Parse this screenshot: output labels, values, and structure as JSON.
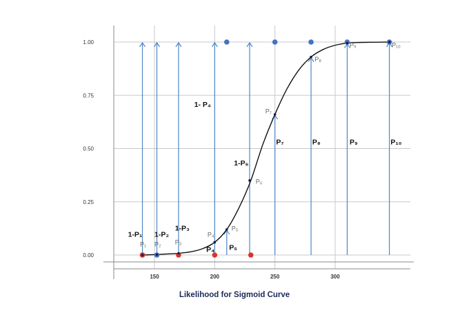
{
  "chart_data": {
    "type": "scatter",
    "xlabel": "Likelihood for Sigmoid Curve",
    "ylabel": "",
    "xlim": [
      120,
      355
    ],
    "ylim": [
      0,
      1
    ],
    "x_ticks": [
      "150",
      "200",
      "250",
      "300"
    ],
    "x_tick_values": [
      150,
      200,
      250,
      300
    ],
    "y_ticks": [
      "0.00",
      "0.25",
      "0.50",
      "0.75",
      "1.00"
    ],
    "y_tick_values": [
      0,
      0.25,
      0.5,
      0.75,
      1
    ],
    "grid": true,
    "colors": {
      "curve": "#111111",
      "arrow": "#4f86c6",
      "blue_point": "#4472c4",
      "red_point": "#d9342b",
      "curve_point": "#1a1a3a"
    },
    "curve": {
      "x": [
        140,
        150,
        160,
        170,
        180,
        190,
        200,
        210,
        220,
        230,
        240,
        250,
        260,
        270,
        280,
        290,
        300,
        310,
        320,
        330,
        345
      ],
      "y": [
        0.0,
        0.002,
        0.005,
        0.008,
        0.015,
        0.03,
        0.06,
        0.12,
        0.22,
        0.35,
        0.52,
        0.66,
        0.78,
        0.87,
        0.93,
        0.965,
        0.985,
        0.995,
        0.998,
        0.999,
        1.0
      ]
    },
    "arrows": [
      {
        "x": 140,
        "y_from": 0.0,
        "y_to": 1.0
      },
      {
        "x": 152,
        "y_from": 0.0,
        "y_to": 1.0
      },
      {
        "x": 170,
        "y_from": 0.0,
        "y_to": 1.0
      },
      {
        "x": 200,
        "y_from": 0.0,
        "y_to": 1.0
      },
      {
        "x": 229,
        "y_from": 0.0,
        "y_to": 1.0
      },
      {
        "x": 250,
        "y_from": 0.0,
        "y_to": 0.66
      },
      {
        "x": 280,
        "y_from": 0.0,
        "y_to": 0.93
      },
      {
        "x": 310,
        "y_from": 0.0,
        "y_to": 0.995
      },
      {
        "x": 345,
        "y_from": 0.0,
        "y_to": 1.0
      },
      {
        "x": 210,
        "y_from": 0.0,
        "y_to": 0.12
      }
    ],
    "points_curve": [
      {
        "x": 140,
        "y": 0.0
      },
      {
        "x": 152,
        "y": 0.002
      },
      {
        "x": 170,
        "y": 0.008
      },
      {
        "x": 200,
        "y": 0.06
      },
      {
        "x": 210,
        "y": 0.12
      },
      {
        "x": 229,
        "y": 0.35
      },
      {
        "x": 250,
        "y": 0.66
      },
      {
        "x": 280,
        "y": 0.93
      },
      {
        "x": 310,
        "y": 0.995
      },
      {
        "x": 345,
        "y": 1.0
      }
    ],
    "points_blue": [
      {
        "x": 140,
        "y": 0.0
      },
      {
        "x": 152,
        "y": 0.0
      },
      {
        "x": 210,
        "y": 1.0
      },
      {
        "x": 250,
        "y": 1.0
      },
      {
        "x": 280,
        "y": 1.0
      },
      {
        "x": 310,
        "y": 1.0
      },
      {
        "x": 345,
        "y": 1.0
      }
    ],
    "points_red": [
      {
        "x": 140,
        "y": 0.0
      },
      {
        "x": 170,
        "y": 0.0
      },
      {
        "x": 200,
        "y": 0.0
      },
      {
        "x": 230,
        "y": 0.0
      }
    ],
    "annotations": [
      {
        "text": "1- P₄",
        "x": 183,
        "y": 0.695,
        "style": "bold",
        "size": 10.5
      },
      {
        "text": "P₇",
        "x": 242,
        "y": 0.665,
        "style": "gray",
        "size": 9
      },
      {
        "text": "P₇",
        "x": 251,
        "y": 0.52,
        "style": "bold",
        "size": 10.5
      },
      {
        "text": "P₈",
        "x": 281,
        "y": 0.52,
        "style": "bold",
        "size": 10.5
      },
      {
        "text": "P₉",
        "x": 312,
        "y": 0.52,
        "style": "bold",
        "size": 10.5
      },
      {
        "text": "P₁₀",
        "x": 346,
        "y": 0.52,
        "style": "bold",
        "size": 10.5
      },
      {
        "text": "1-P₆",
        "x": 216,
        "y": 0.42,
        "style": "bold",
        "size": 10.5
      },
      {
        "text": "P₆",
        "x": 234,
        "y": 0.335,
        "style": "gray",
        "size": 9
      },
      {
        "text": "P₈",
        "x": 283,
        "y": 0.91,
        "style": "gray",
        "size": 9
      },
      {
        "text": "P₉",
        "x": 312,
        "y": 0.975,
        "style": "gray",
        "size": 9
      },
      {
        "text": "P₁₀",
        "x": 347,
        "y": 0.975,
        "style": "gray",
        "size": 9
      },
      {
        "text": "1-P₁",
        "x": 128,
        "y": 0.085,
        "style": "bold",
        "size": 10.5
      },
      {
        "text": "1-P₂",
        "x": 150,
        "y": 0.085,
        "style": "bold",
        "size": 10.5
      },
      {
        "text": "1-P₃",
        "x": 167,
        "y": 0.115,
        "style": "bold",
        "size": 10.5
      },
      {
        "text": "P₁",
        "x": 138,
        "y": 0.04,
        "style": "gray",
        "size": 9
      },
      {
        "text": "P₂",
        "x": 150,
        "y": 0.04,
        "style": "gray",
        "size": 9
      },
      {
        "text": "P₃",
        "x": 167,
        "y": 0.05,
        "style": "gray",
        "size": 9
      },
      {
        "text": "P₄",
        "x": 194,
        "y": 0.085,
        "style": "gray",
        "size": 9
      },
      {
        "text": "P₅",
        "x": 214,
        "y": 0.115,
        "style": "gray",
        "size": 9
      },
      {
        "text": "P₄",
        "x": 193,
        "y": 0.015,
        "style": "bold",
        "size": 10.5
      },
      {
        "text": "P₅",
        "x": 212,
        "y": 0.025,
        "style": "bold",
        "size": 10.5
      }
    ]
  }
}
